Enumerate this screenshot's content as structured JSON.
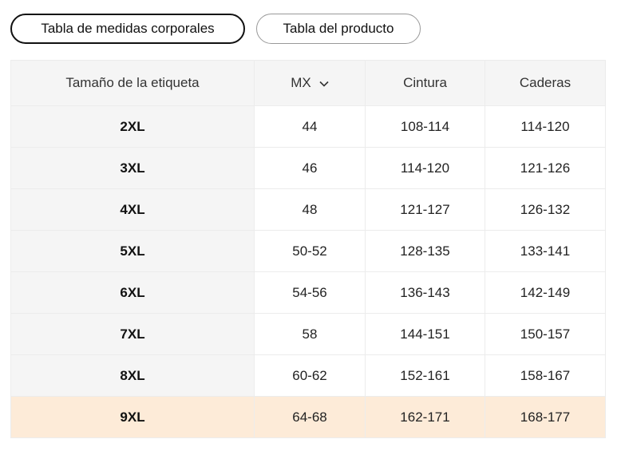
{
  "tabs": [
    "Tabla de medidas corporales",
    "Tabla del producto"
  ],
  "table": {
    "header": [
      "Tamaño de la etiqueta",
      "MX",
      "Cintura",
      "Caderas"
    ],
    "rows": [
      [
        "2XL",
        "44",
        "108-114",
        "114-120"
      ],
      [
        "3XL",
        "46",
        "114-120",
        "121-126"
      ],
      [
        "4XL",
        "48",
        "121-127",
        "126-132"
      ],
      [
        "5XL",
        "50-52",
        "128-135",
        "133-141"
      ],
      [
        "6XL",
        "54-56",
        "136-143",
        "142-149"
      ],
      [
        "7XL",
        "58",
        "144-151",
        "150-157"
      ],
      [
        "8XL",
        "60-62",
        "152-161",
        "158-167"
      ],
      [
        "9XL",
        "64-68",
        "162-171",
        "168-177"
      ]
    ]
  }
}
